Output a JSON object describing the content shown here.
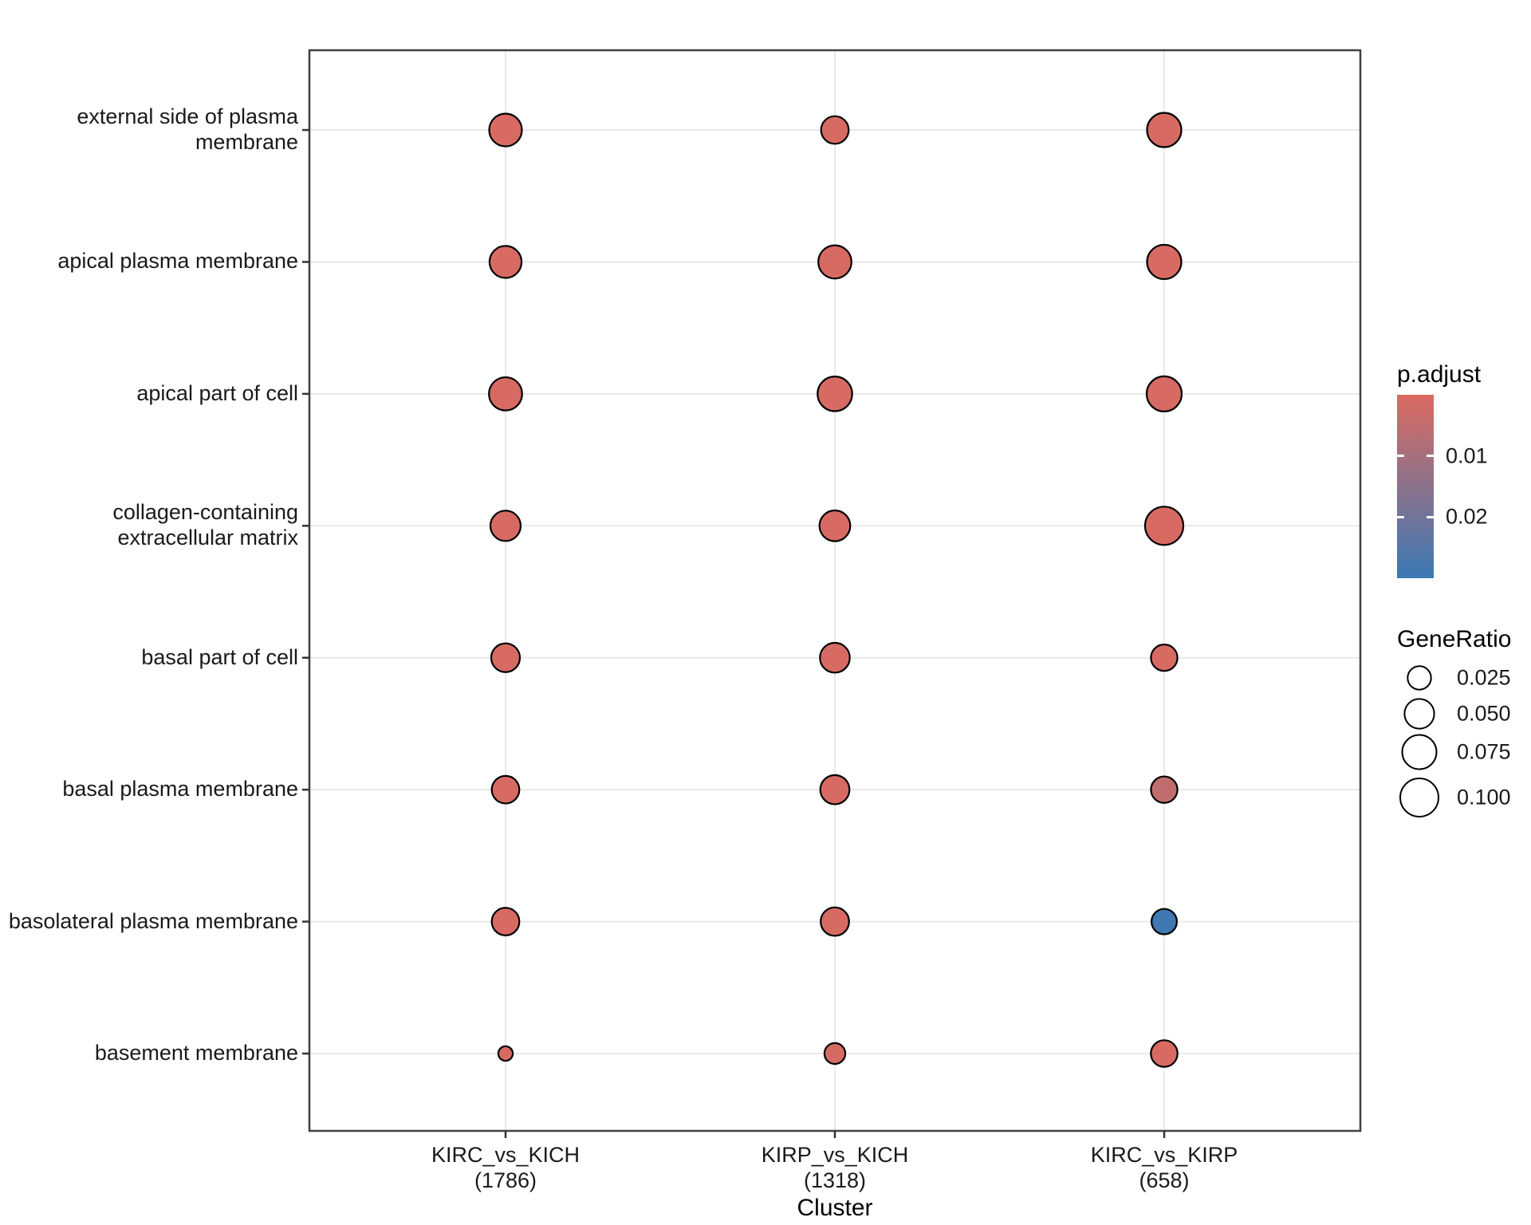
{
  "chart_data": {
    "type": "scatter",
    "subtype": "enrichment-dotplot",
    "title": "",
    "xlabel": "Cluster",
    "ylabel": "",
    "grid": true,
    "legend_position": "right",
    "x_categories": [
      {
        "name": "KIRC_vs_KICH",
        "count": "(1786)"
      },
      {
        "name": "KIRP_vs_KICH",
        "count": "(1318)"
      },
      {
        "name": "KIRC_vs_KIRP",
        "count": "(658)"
      }
    ],
    "y_categories": [
      "external side of plasma\nmembrane",
      "apical plasma membrane",
      "apical part of cell",
      "collagen-containing\nextracellular matrix",
      "basal part of cell",
      "basal plasma membrane",
      "basolateral plasma membrane",
      "basement membrane"
    ],
    "points": [
      {
        "x": 0,
        "y": 0,
        "gene_ratio": 0.066,
        "p_adjust": 0.001
      },
      {
        "x": 0,
        "y": 1,
        "gene_ratio": 0.062,
        "p_adjust": 0.001
      },
      {
        "x": 0,
        "y": 2,
        "gene_ratio": 0.068,
        "p_adjust": 0.001
      },
      {
        "x": 0,
        "y": 3,
        "gene_ratio": 0.053,
        "p_adjust": 0.001
      },
      {
        "x": 0,
        "y": 4,
        "gene_ratio": 0.046,
        "p_adjust": 0.001
      },
      {
        "x": 0,
        "y": 5,
        "gene_ratio": 0.041,
        "p_adjust": 0.001
      },
      {
        "x": 0,
        "y": 6,
        "gene_ratio": 0.041,
        "p_adjust": 0.001
      },
      {
        "x": 0,
        "y": 7,
        "gene_ratio": 0.004,
        "p_adjust": 0.001
      },
      {
        "x": 1,
        "y": 0,
        "gene_ratio": 0.041,
        "p_adjust": 0.001
      },
      {
        "x": 1,
        "y": 1,
        "gene_ratio": 0.068,
        "p_adjust": 0.001
      },
      {
        "x": 1,
        "y": 2,
        "gene_ratio": 0.077,
        "p_adjust": 0.001
      },
      {
        "x": 1,
        "y": 3,
        "gene_ratio": 0.056,
        "p_adjust": 0.001
      },
      {
        "x": 1,
        "y": 4,
        "gene_ratio": 0.051,
        "p_adjust": 0.001
      },
      {
        "x": 1,
        "y": 5,
        "gene_ratio": 0.048,
        "p_adjust": 0.001
      },
      {
        "x": 1,
        "y": 6,
        "gene_ratio": 0.044,
        "p_adjust": 0.001
      },
      {
        "x": 1,
        "y": 7,
        "gene_ratio": 0.017,
        "p_adjust": 0.001
      },
      {
        "x": 2,
        "y": 0,
        "gene_ratio": 0.075,
        "p_adjust": 0.001
      },
      {
        "x": 2,
        "y": 1,
        "gene_ratio": 0.075,
        "p_adjust": 0.001
      },
      {
        "x": 2,
        "y": 2,
        "gene_ratio": 0.079,
        "p_adjust": 0.001
      },
      {
        "x": 2,
        "y": 3,
        "gene_ratio": 0.1,
        "p_adjust": 0.001
      },
      {
        "x": 2,
        "y": 4,
        "gene_ratio": 0.036,
        "p_adjust": 0.001
      },
      {
        "x": 2,
        "y": 5,
        "gene_ratio": 0.036,
        "p_adjust": 0.005
      },
      {
        "x": 2,
        "y": 6,
        "gene_ratio": 0.032,
        "p_adjust": 0.029
      },
      {
        "x": 2,
        "y": 7,
        "gene_ratio": 0.037,
        "p_adjust": 0.001
      }
    ],
    "legend_p_adjust": {
      "title": "p.adjust",
      "domain": [
        0,
        0.03
      ],
      "ticks": [
        {
          "value": 0.01,
          "label": "0.01"
        },
        {
          "value": 0.02,
          "label": "0.02"
        }
      ]
    },
    "legend_gene_ratio": {
      "title": "GeneRatio",
      "items": [
        {
          "value": 0.025,
          "label": "0.025"
        },
        {
          "value": 0.05,
          "label": "0.050"
        },
        {
          "value": 0.075,
          "label": "0.075"
        },
        {
          "value": 0.1,
          "label": "0.100"
        }
      ]
    }
  },
  "colors": {
    "p_low_red": "#DC6A61",
    "p_high_blue": "#3B79B5",
    "panel_border": "#404040",
    "gridline": "#E9E9E9",
    "tick": "#333333",
    "dot_stroke": "#000000",
    "text": "#1A1A1A"
  }
}
